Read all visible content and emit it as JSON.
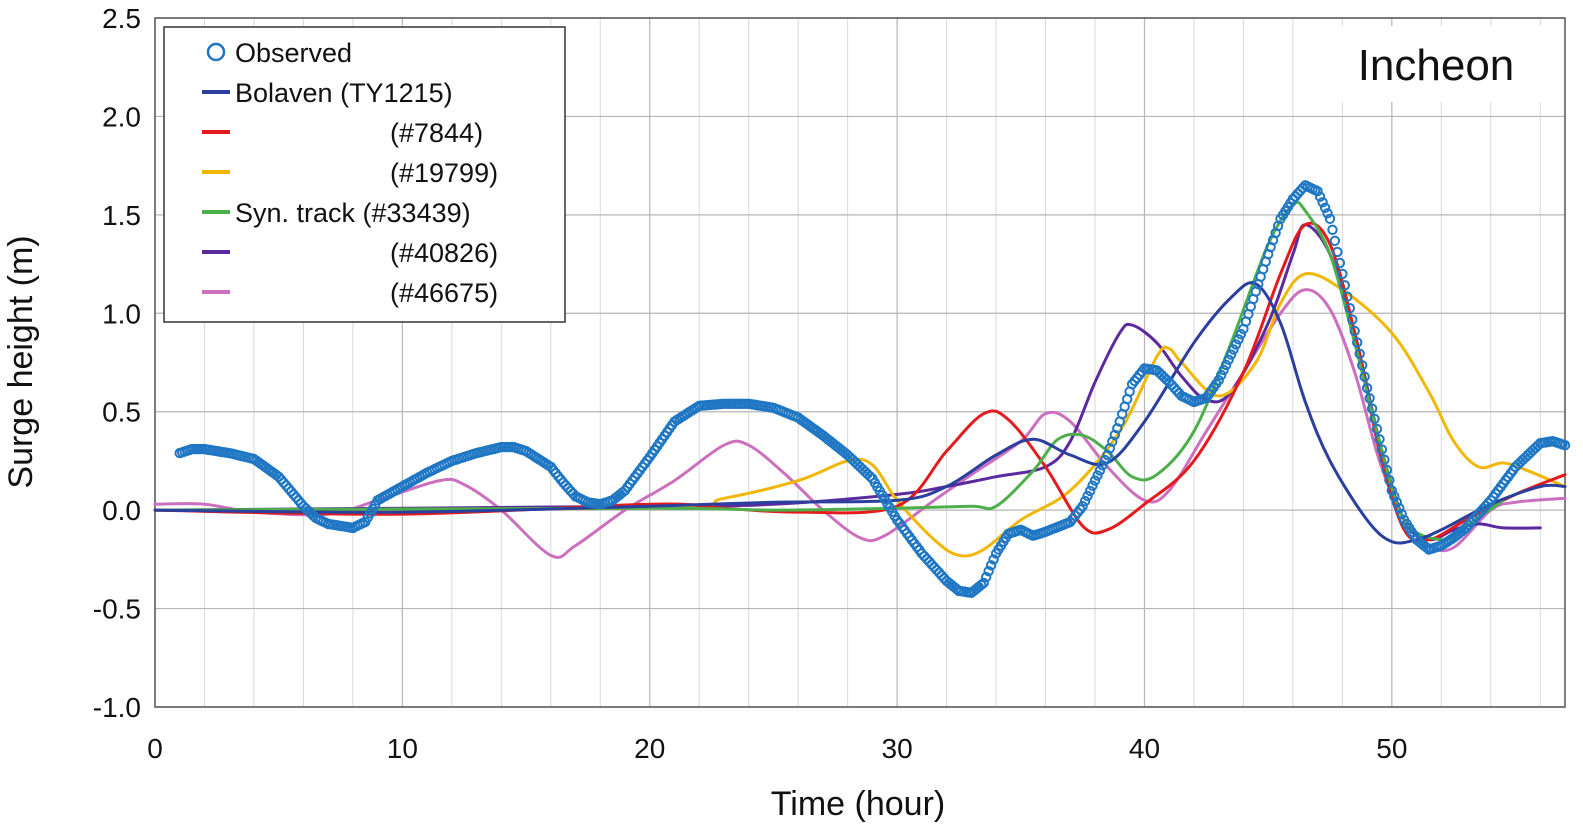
{
  "chart_data": {
    "type": "line",
    "title": "",
    "station_label": "Incheon",
    "xlabel": "Time (hour)",
    "ylabel": "Surge height (m)",
    "xlim": [
      0,
      57
    ],
    "ylim": [
      -1.0,
      2.5
    ],
    "x_ticks": [
      0,
      10,
      20,
      30,
      40,
      50
    ],
    "x_tick_labels": [
      "0",
      "10",
      "20",
      "30",
      "40",
      "50"
    ],
    "y_ticks": [
      -1.0,
      -0.5,
      0.0,
      0.5,
      1.0,
      1.5,
      2.0,
      2.5
    ],
    "y_tick_labels": [
      "-1.0",
      "-0.5",
      "0.0",
      "0.5",
      "1.0",
      "1.5",
      "2.0",
      "2.5"
    ],
    "grid": true,
    "legend_position": "top-left",
    "legend": [
      {
        "label": "Observed",
        "color": "#1f77c4",
        "marker": "circle"
      },
      {
        "label": "Bolaven (TY1215)",
        "color": "#2b3f9e",
        "marker": "line"
      },
      {
        "label": "(#7844)",
        "color": "#e41a1c",
        "marker": "line"
      },
      {
        "label": "(#19799)",
        "color": "#f2b705",
        "marker": "line"
      },
      {
        "label": "Syn. track (#33439)",
        "color": "#4daf4a",
        "marker": "line"
      },
      {
        "label": "(#40826)",
        "color": "#5b2a9e",
        "marker": "line"
      },
      {
        "label": "(#46675)",
        "color": "#cc6fbf",
        "marker": "line"
      }
    ],
    "series": [
      {
        "name": "Observed",
        "style": "markers",
        "color": "#1f77c4",
        "points": [
          [
            1,
            0.29
          ],
          [
            1.5,
            0.31
          ],
          [
            2,
            0.31
          ],
          [
            3,
            0.29
          ],
          [
            4,
            0.26
          ],
          [
            5,
            0.17
          ],
          [
            6,
            0.02
          ],
          [
            6.5,
            -0.04
          ],
          [
            7,
            -0.07
          ],
          [
            7.5,
            -0.08
          ],
          [
            8,
            -0.09
          ],
          [
            8.5,
            -0.06
          ],
          [
            9,
            0.05
          ],
          [
            10,
            0.12
          ],
          [
            11,
            0.19
          ],
          [
            12,
            0.25
          ],
          [
            13,
            0.29
          ],
          [
            14,
            0.32
          ],
          [
            14.5,
            0.32
          ],
          [
            15,
            0.3
          ],
          [
            16,
            0.22
          ],
          [
            16.5,
            0.14
          ],
          [
            17,
            0.07
          ],
          [
            17.5,
            0.04
          ],
          [
            18,
            0.03
          ],
          [
            18.5,
            0.05
          ],
          [
            19,
            0.1
          ],
          [
            20,
            0.27
          ],
          [
            21,
            0.45
          ],
          [
            22,
            0.53
          ],
          [
            23,
            0.54
          ],
          [
            24,
            0.54
          ],
          [
            25,
            0.52
          ],
          [
            26,
            0.47
          ],
          [
            27,
            0.38
          ],
          [
            28,
            0.28
          ],
          [
            29,
            0.16
          ],
          [
            30,
            -0.05
          ],
          [
            31,
            -0.22
          ],
          [
            32,
            -0.36
          ],
          [
            32.5,
            -0.41
          ],
          [
            33,
            -0.42
          ],
          [
            33.5,
            -0.37
          ],
          [
            34,
            -0.22
          ],
          [
            34.5,
            -0.12
          ],
          [
            35,
            -0.1
          ],
          [
            35.5,
            -0.13
          ],
          [
            36,
            -0.11
          ],
          [
            37,
            -0.06
          ],
          [
            37.5,
            0.02
          ],
          [
            38,
            0.15
          ],
          [
            38.5,
            0.28
          ],
          [
            39,
            0.45
          ],
          [
            39.5,
            0.64
          ],
          [
            40,
            0.72
          ],
          [
            40.5,
            0.71
          ],
          [
            41,
            0.65
          ],
          [
            41.5,
            0.58
          ],
          [
            42,
            0.55
          ],
          [
            42.5,
            0.57
          ],
          [
            43,
            0.66
          ],
          [
            44,
            0.92
          ],
          [
            45,
            1.3
          ],
          [
            45.5,
            1.48
          ],
          [
            46,
            1.58
          ],
          [
            46.5,
            1.65
          ],
          [
            47,
            1.62
          ],
          [
            47.5,
            1.48
          ],
          [
            48,
            1.2
          ],
          [
            49,
            0.62
          ],
          [
            50,
            0.1
          ],
          [
            50.5,
            -0.05
          ],
          [
            51,
            -0.15
          ],
          [
            51.5,
            -0.2
          ],
          [
            52,
            -0.18
          ],
          [
            52.5,
            -0.14
          ],
          [
            53,
            -0.09
          ],
          [
            54,
            0.05
          ],
          [
            55,
            0.22
          ],
          [
            56,
            0.34
          ],
          [
            56.5,
            0.35
          ],
          [
            57,
            0.33
          ]
        ]
      },
      {
        "name": "Bolaven (TY1215)",
        "style": "line",
        "color": "#2b3f9e",
        "points": [
          [
            0,
            0
          ],
          [
            10,
            -0.01
          ],
          [
            20,
            0.02
          ],
          [
            25,
            0.04
          ],
          [
            30,
            0.05
          ],
          [
            32,
            0.12
          ],
          [
            34,
            0.28
          ],
          [
            35.5,
            0.36
          ],
          [
            37,
            0.28
          ],
          [
            38.5,
            0.24
          ],
          [
            40,
            0.45
          ],
          [
            42,
            0.85
          ],
          [
            43.5,
            1.08
          ],
          [
            44.5,
            1.15
          ],
          [
            45.5,
            0.95
          ],
          [
            46.5,
            0.55
          ],
          [
            47.5,
            0.25
          ],
          [
            49,
            -0.05
          ],
          [
            50,
            -0.16
          ],
          [
            51,
            -0.15
          ],
          [
            52,
            -0.1
          ],
          [
            54,
            0.03
          ],
          [
            56,
            0.12
          ],
          [
            57,
            0.12
          ]
        ]
      },
      {
        "name": "(#7844)",
        "style": "line",
        "color": "#e41a1c",
        "points": [
          [
            0,
            0
          ],
          [
            10,
            -0.02
          ],
          [
            20,
            0.03
          ],
          [
            23,
            0.01
          ],
          [
            26,
            -0.01
          ],
          [
            30,
            0.02
          ],
          [
            32,
            0.3
          ],
          [
            33.5,
            0.49
          ],
          [
            34.5,
            0.46
          ],
          [
            36,
            0.22
          ],
          [
            37.5,
            -0.08
          ],
          [
            38.5,
            -0.1
          ],
          [
            40,
            0.03
          ],
          [
            42,
            0.25
          ],
          [
            44,
            0.7
          ],
          [
            45.5,
            1.2
          ],
          [
            46.5,
            1.45
          ],
          [
            47.5,
            1.35
          ],
          [
            48.5,
            0.9
          ],
          [
            49.5,
            0.3
          ],
          [
            50.5,
            -0.1
          ],
          [
            51.5,
            -0.15
          ],
          [
            53,
            -0.05
          ],
          [
            55,
            0.08
          ],
          [
            57,
            0.18
          ]
        ]
      },
      {
        "name": "(#19799)",
        "style": "line",
        "color": "#f2b705",
        "points": [
          [
            0,
            0
          ],
          [
            20,
            0.01
          ],
          [
            23,
            0.06
          ],
          [
            26,
            0.15
          ],
          [
            28,
            0.25
          ],
          [
            29,
            0.23
          ],
          [
            30,
            0.05
          ],
          [
            31.5,
            -0.15
          ],
          [
            32.5,
            -0.23
          ],
          [
            33.5,
            -0.2
          ],
          [
            35,
            -0.05
          ],
          [
            37,
            0.1
          ],
          [
            39,
            0.4
          ],
          [
            40.5,
            0.78
          ],
          [
            41,
            0.82
          ],
          [
            41.5,
            0.75
          ],
          [
            43,
            0.58
          ],
          [
            44.5,
            0.75
          ],
          [
            45.5,
            1.05
          ],
          [
            46.5,
            1.2
          ],
          [
            48,
            1.12
          ],
          [
            50,
            0.9
          ],
          [
            51.5,
            0.6
          ],
          [
            52.5,
            0.35
          ],
          [
            53.5,
            0.22
          ],
          [
            54.5,
            0.24
          ],
          [
            55.5,
            0.2
          ],
          [
            57,
            0.12
          ]
        ]
      },
      {
        "name": "Syn. track (#33439)",
        "style": "line",
        "color": "#4daf4a",
        "points": [
          [
            0,
            0
          ],
          [
            20,
            0.01
          ],
          [
            25,
            0.0
          ],
          [
            30,
            0.01
          ],
          [
            33,
            0.02
          ],
          [
            34,
            0.02
          ],
          [
            35.5,
            0.2
          ],
          [
            36.5,
            0.36
          ],
          [
            37.5,
            0.38
          ],
          [
            38.5,
            0.3
          ],
          [
            39.5,
            0.17
          ],
          [
            40.5,
            0.18
          ],
          [
            42,
            0.4
          ],
          [
            43.5,
            0.85
          ],
          [
            45,
            1.35
          ],
          [
            46,
            1.55
          ],
          [
            46.5,
            1.52
          ],
          [
            47.5,
            1.3
          ],
          [
            48.5,
            0.85
          ],
          [
            49.5,
            0.35
          ],
          [
            50.5,
            -0.05
          ],
          [
            52,
            -0.15
          ],
          [
            53,
            -0.08
          ],
          [
            54.5,
            0.05
          ]
        ]
      },
      {
        "name": "(#40826)",
        "style": "line",
        "color": "#5b2a9e",
        "points": [
          [
            0,
            0
          ],
          [
            20,
            0.02
          ],
          [
            25,
            0.03
          ],
          [
            30,
            0.08
          ],
          [
            32,
            0.12
          ],
          [
            34,
            0.17
          ],
          [
            36,
            0.22
          ],
          [
            37,
            0.35
          ],
          [
            38,
            0.65
          ],
          [
            39,
            0.9
          ],
          [
            39.5,
            0.94
          ],
          [
            40.5,
            0.85
          ],
          [
            41.5,
            0.68
          ],
          [
            42.5,
            0.56
          ],
          [
            43.5,
            0.6
          ],
          [
            45,
            0.95
          ],
          [
            46,
            1.3
          ],
          [
            46.5,
            1.45
          ],
          [
            47.5,
            1.3
          ],
          [
            48.5,
            0.9
          ],
          [
            49.5,
            0.35
          ],
          [
            50.5,
            -0.05
          ],
          [
            51.5,
            -0.15
          ],
          [
            52.5,
            -0.1
          ],
          [
            53.5,
            -0.07
          ],
          [
            54.5,
            -0.09
          ],
          [
            56,
            -0.09
          ]
        ]
      },
      {
        "name": "(#46675)",
        "style": "line",
        "color": "#cc6fbf",
        "points": [
          [
            0,
            0.03
          ],
          [
            2,
            0.03
          ],
          [
            4,
            -0.01
          ],
          [
            7,
            -0.02
          ],
          [
            9,
            0.05
          ],
          [
            11.5,
            0.15
          ],
          [
            12.5,
            0.13
          ],
          [
            14,
            0.0
          ],
          [
            16,
            -0.23
          ],
          [
            17,
            -0.18
          ],
          [
            19,
            0.0
          ],
          [
            21,
            0.15
          ],
          [
            23,
            0.33
          ],
          [
            24,
            0.33
          ],
          [
            25.5,
            0.18
          ],
          [
            27,
            0.0
          ],
          [
            28.5,
            -0.14
          ],
          [
            29.5,
            -0.13
          ],
          [
            31.5,
            0.05
          ],
          [
            33,
            0.18
          ],
          [
            35,
            0.35
          ],
          [
            36,
            0.49
          ],
          [
            37,
            0.45
          ],
          [
            38.5,
            0.22
          ],
          [
            40,
            0.05
          ],
          [
            41,
            0.1
          ],
          [
            42.5,
            0.4
          ],
          [
            44,
            0.7
          ],
          [
            45.5,
            1.0
          ],
          [
            46.5,
            1.12
          ],
          [
            47.5,
            1.02
          ],
          [
            48.5,
            0.7
          ],
          [
            49.5,
            0.25
          ],
          [
            50.5,
            -0.05
          ],
          [
            51.5,
            -0.18
          ],
          [
            52.5,
            -0.19
          ],
          [
            54,
            0.0
          ],
          [
            55,
            0.04
          ],
          [
            57,
            0.06
          ]
        ]
      }
    ]
  }
}
